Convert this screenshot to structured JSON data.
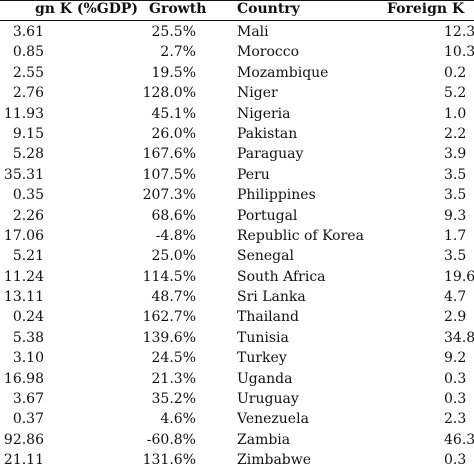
{
  "headers": {
    "foreign_k_left": "gn K (%GDP)",
    "growth": "Growth",
    "country": "Country",
    "foreign_k_right": "Foreign K"
  },
  "rows": [
    {
      "k1": "3.61",
      "g1": "25.5%",
      "country": "Mali",
      "k2": "12.3"
    },
    {
      "k1": "0.85",
      "g1": "2.7%",
      "country": "Morocco",
      "k2": "10.3"
    },
    {
      "k1": "2.55",
      "g1": "19.5%",
      "country": "Mozambique",
      "k2": "0.2"
    },
    {
      "k1": "2.76",
      "g1": "128.0%",
      "country": "Niger",
      "k2": "5.2"
    },
    {
      "k1": "11.93",
      "g1": "45.1%",
      "country": "Nigeria",
      "k2": "1.0"
    },
    {
      "k1": "9.15",
      "g1": "26.0%",
      "country": "Pakistan",
      "k2": "2.2"
    },
    {
      "k1": "5.28",
      "g1": "167.6%",
      "country": "Paraguay",
      "k2": "3.9"
    },
    {
      "k1": "35.31",
      "g1": "107.5%",
      "country": "Peru",
      "k2": "3.5"
    },
    {
      "k1": "0.35",
      "g1": "207.3%",
      "country": "Philippines",
      "k2": "3.5"
    },
    {
      "k1": "2.26",
      "g1": "68.6%",
      "country": "Portugal",
      "k2": "9.3"
    },
    {
      "k1": "17.06",
      "g1": "-4.8%",
      "country": "Republic of Korea",
      "k2": "1.7"
    },
    {
      "k1": "5.21",
      "g1": "25.0%",
      "country": "Senegal",
      "k2": "3.5"
    },
    {
      "k1": "11.24",
      "g1": "114.5%",
      "country": "South Africa",
      "k2": "19.6"
    },
    {
      "k1": "13.11",
      "g1": "48.7%",
      "country": "Sri Lanka",
      "k2": "4.7"
    },
    {
      "k1": "0.24",
      "g1": "162.7%",
      "country": "Thailand",
      "k2": "2.9"
    },
    {
      "k1": "5.38",
      "g1": "139.6%",
      "country": "Tunisia",
      "k2": "34.8"
    },
    {
      "k1": "3.10",
      "g1": "24.5%",
      "country": "Turkey",
      "k2": "9.2"
    },
    {
      "k1": "16.98",
      "g1": "21.3%",
      "country": "Uganda",
      "k2": "0.3"
    },
    {
      "k1": "3.67",
      "g1": "35.2%",
      "country": "Uruguay",
      "k2": "0.3"
    },
    {
      "k1": "0.37",
      "g1": "4.6%",
      "country": "Venezuela",
      "k2": "2.3"
    },
    {
      "k1": "92.86",
      "g1": "-60.8%",
      "country": "Zambia",
      "k2": "46.3"
    },
    {
      "k1": "21.11",
      "g1": "131.6%",
      "country": "Zimbabwe",
      "k2": "0.3"
    }
  ]
}
